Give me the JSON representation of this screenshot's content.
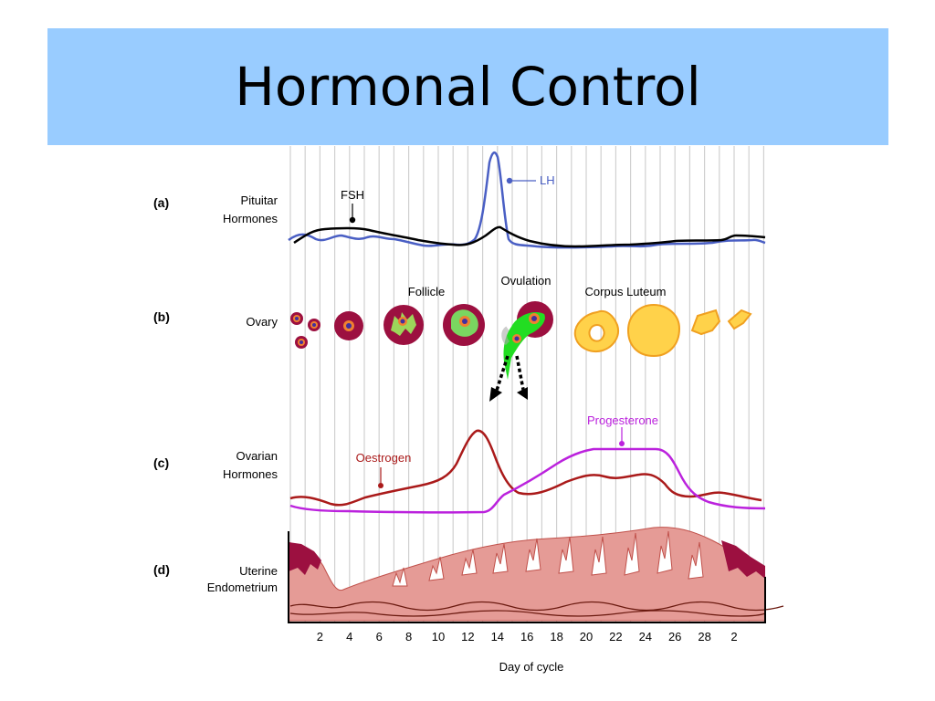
{
  "slide": {
    "title": "Hormonal Control"
  },
  "figure": {
    "panels": [
      {
        "letter": "(a)",
        "line1": "Pituitar",
        "line2": "Hormones"
      },
      {
        "letter": "(b)",
        "line1": "Ovary",
        "line2": ""
      },
      {
        "letter": "(c)",
        "line1": "Ovarian",
        "line2": "Hormones"
      },
      {
        "letter": "(d)",
        "line1": "Uterine",
        "line2": "Endometrium"
      }
    ],
    "labels": {
      "fsh": "FSH",
      "lh": "LH",
      "follicle": "Follicle",
      "ovulation": "Ovulation",
      "corpus_luteum": "Corpus Luteum",
      "oestrogen": "Oestrogen",
      "progesterone": "Progesterone"
    },
    "axis": {
      "title": "Day of cycle",
      "ticks": [
        "2",
        "4",
        "6",
        "8",
        "10",
        "12",
        "14",
        "16",
        "18",
        "20",
        "22",
        "24",
        "26",
        "28",
        "2"
      ]
    },
    "colors": {
      "title_bar": "#99ccff",
      "lh": "#4a5fc4",
      "fsh": "#000000",
      "oestrogen": "#aa1a1a",
      "progesterone": "#bb22dd",
      "follicle": "#9c1040",
      "corpus_luteum": "#ffd24a",
      "endometrium": "#e59b96"
    }
  }
}
